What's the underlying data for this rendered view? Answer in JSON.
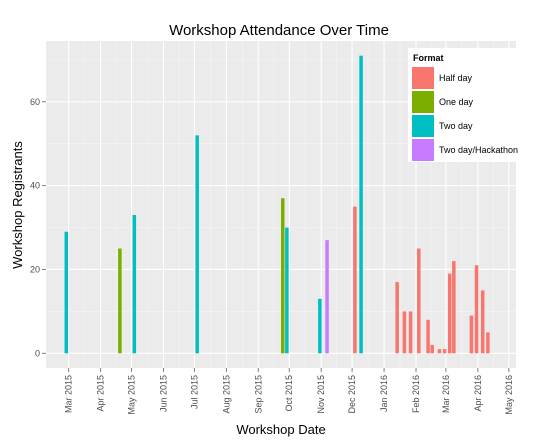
{
  "chart_data": {
    "type": "bar",
    "title": "Workshop Attendance Over Time",
    "xlabel": "Workshop Date",
    "ylabel": "Workshop Registrants",
    "x_type": "date",
    "xlim": [
      "2015-02-07",
      "2016-05-08"
    ],
    "ylim": [
      -3.5,
      74.5
    ],
    "y_ticks": [
      0,
      20,
      40,
      60
    ],
    "x_ticks": [
      {
        "date": "2015-03-01",
        "label": "Mar 2015"
      },
      {
        "date": "2015-04-01",
        "label": "Apr 2015"
      },
      {
        "date": "2015-05-01",
        "label": "May 2015"
      },
      {
        "date": "2015-06-01",
        "label": "Jun 2015"
      },
      {
        "date": "2015-07-01",
        "label": "Jul 2015"
      },
      {
        "date": "2015-08-01",
        "label": "Aug 2015"
      },
      {
        "date": "2015-09-01",
        "label": "Sep 2015"
      },
      {
        "date": "2015-10-01",
        "label": "Oct 2015"
      },
      {
        "date": "2015-11-01",
        "label": "Nov 2015"
      },
      {
        "date": "2015-12-01",
        "label": "Dec 2015"
      },
      {
        "date": "2016-01-01",
        "label": "Jan 2016"
      },
      {
        "date": "2016-02-01",
        "label": "Feb 2016"
      },
      {
        "date": "2016-03-01",
        "label": "Mar 2016"
      },
      {
        "date": "2016-04-01",
        "label": "Apr 2016"
      },
      {
        "date": "2016-05-01",
        "label": "May 2016"
      }
    ],
    "grid": true,
    "legend": {
      "title": "Format",
      "position": "top-right"
    },
    "series": [
      {
        "name": "Half day",
        "color": "#F8766D",
        "points": [
          {
            "date": "2015-12-02",
            "value": 35
          },
          {
            "date": "2016-01-12",
            "value": 17
          },
          {
            "date": "2016-01-19",
            "value": 10
          },
          {
            "date": "2016-01-25",
            "value": 10
          },
          {
            "date": "2016-02-02",
            "value": 25
          },
          {
            "date": "2016-02-11",
            "value": 8
          },
          {
            "date": "2016-02-15",
            "value": 2
          },
          {
            "date": "2016-02-22",
            "value": 1
          },
          {
            "date": "2016-02-27",
            "value": 1
          },
          {
            "date": "2016-03-03",
            "value": 19
          },
          {
            "date": "2016-03-07",
            "value": 22
          },
          {
            "date": "2016-03-24",
            "value": 9
          },
          {
            "date": "2016-03-29",
            "value": 21
          },
          {
            "date": "2016-04-04",
            "value": 15
          },
          {
            "date": "2016-04-09",
            "value": 5
          }
        ]
      },
      {
        "name": "One day",
        "color": "#7CAE00",
        "points": [
          {
            "date": "2015-04-18",
            "value": 25
          },
          {
            "date": "2015-09-23",
            "value": 37
          }
        ]
      },
      {
        "name": "Two day",
        "color": "#00BFC4",
        "points": [
          {
            "date": "2015-02-25",
            "value": 29
          },
          {
            "date": "2015-05-02",
            "value": 33
          },
          {
            "date": "2015-07-02",
            "value": 52
          },
          {
            "date": "2015-09-27",
            "value": 30
          },
          {
            "date": "2015-10-29",
            "value": 13
          },
          {
            "date": "2015-12-08",
            "value": 71
          }
        ]
      },
      {
        "name": "Two day/Hackathon",
        "color": "#C77CFF",
        "points": [
          {
            "date": "2015-11-05",
            "value": 27
          }
        ]
      }
    ]
  }
}
